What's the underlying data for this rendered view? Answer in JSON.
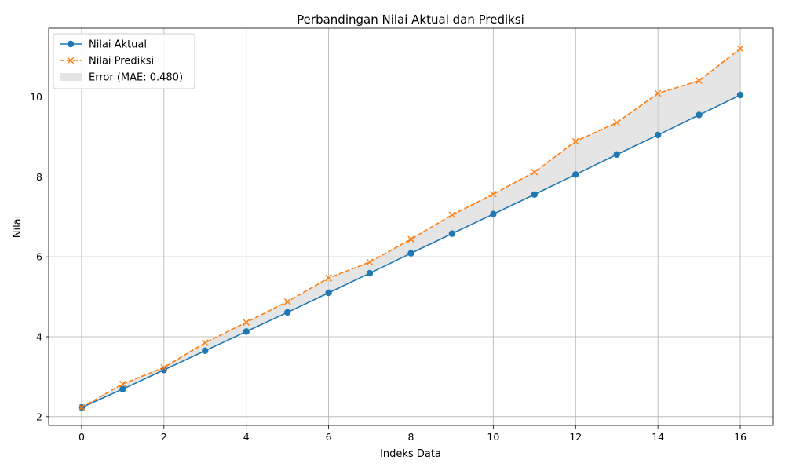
{
  "chart_data": {
    "type": "line",
    "title": "Perbandingan Nilai Aktual dan Prediksi",
    "xlabel": "Indeks Data",
    "ylabel": "Nilai",
    "xlim": [
      -0.8,
      16.8
    ],
    "ylim": [
      1.78,
      11.72
    ],
    "xticks": [
      0,
      2,
      4,
      6,
      8,
      10,
      12,
      14,
      16
    ],
    "yticks": [
      2,
      4,
      6,
      8,
      10
    ],
    "grid": true,
    "legend_position": "top-left",
    "x": [
      0,
      1,
      2,
      3,
      4,
      5,
      6,
      7,
      8,
      9,
      10,
      11,
      12,
      13,
      14,
      15,
      16
    ],
    "series": [
      {
        "name": "Nilai Aktual",
        "color": "#1f77b4",
        "line_style": "solid",
        "marker": "circle",
        "values": [
          2.23,
          2.69,
          3.17,
          3.65,
          4.13,
          4.61,
          5.1,
          5.59,
          6.09,
          6.58,
          7.07,
          7.56,
          8.06,
          8.56,
          9.05,
          9.55,
          10.05
        ]
      },
      {
        "name": "Nilai Prediksi",
        "color": "#ff7f0e",
        "line_style": "dashed",
        "marker": "x",
        "values": [
          2.23,
          2.82,
          3.23,
          3.85,
          4.36,
          4.88,
          5.47,
          5.87,
          6.44,
          7.05,
          7.57,
          8.12,
          8.89,
          9.36,
          10.09,
          10.41,
          11.21
        ]
      }
    ],
    "fill_between": {
      "name": "Error (MAE: 0.480)",
      "color": "#d3d3d3"
    }
  }
}
